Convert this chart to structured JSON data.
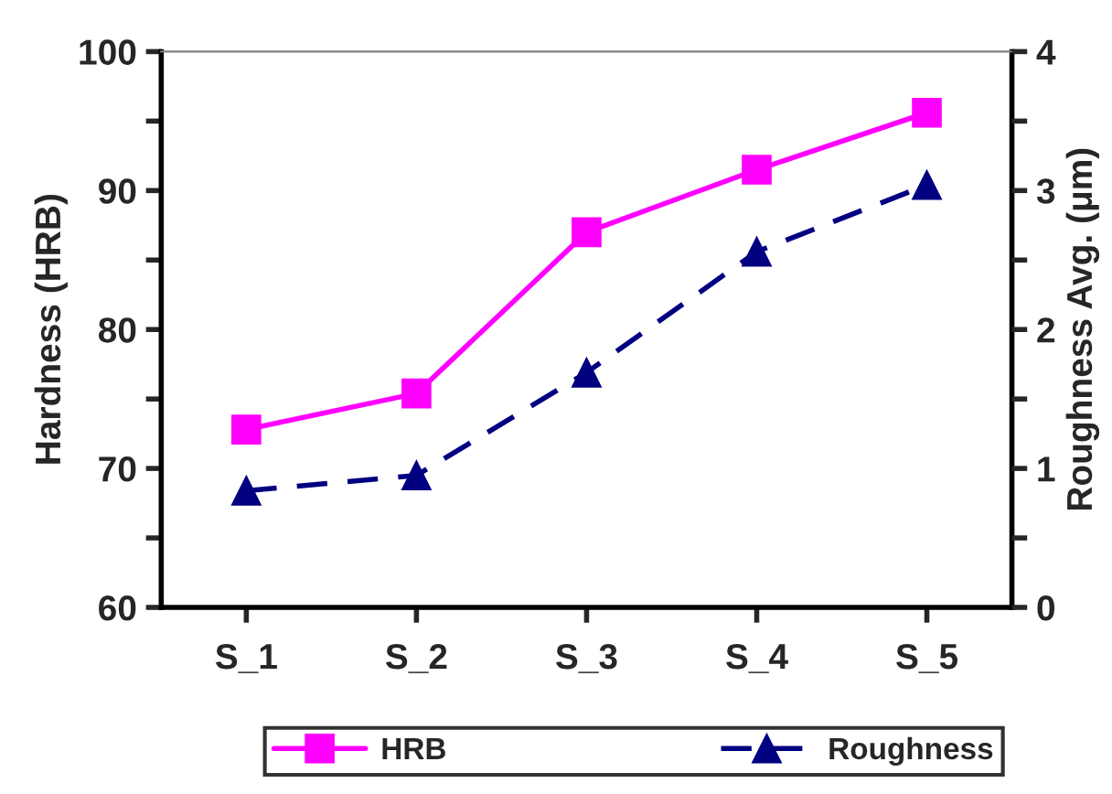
{
  "chart_data": {
    "type": "line",
    "categories": [
      "S_1",
      "S_2",
      "S_3",
      "S_4",
      "S_5"
    ],
    "ylabel": "Hardness (HRB)",
    "y2label": "Roughness Avg. (μm)",
    "series": [
      {
        "name": "HRB",
        "color": "#ff00ff",
        "values": [
          72.8,
          75.4,
          87.0,
          91.5,
          95.6
        ],
        "marker": "square",
        "line_style": "solid"
      },
      {
        "name": "Roughness",
        "color": "#000080",
        "values": [
          0.84,
          0.95,
          1.69,
          2.56,
          3.04
        ],
        "marker": "triangle",
        "line_style": "dashed",
        "axis": "y2"
      }
    ],
    "ylim": [
      60,
      100
    ],
    "yticks": [
      60,
      {
        "value": 65,
        "label": null
      },
      70,
      {
        "value": 75,
        "label": null
      },
      80,
      {
        "value": 85,
        "label": null
      },
      90,
      {
        "value": 95,
        "label": null
      },
      100
    ],
    "y2lim": [
      0,
      4
    ],
    "y2ticks": [
      0,
      {
        "value": 0.5,
        "label": null
      },
      1,
      {
        "value": 1.5,
        "label": null
      },
      2,
      {
        "value": 2.5,
        "label": null
      },
      3,
      {
        "value": 3.5,
        "label": null
      },
      4
    ],
    "grid": false,
    "legend": "bottom"
  }
}
